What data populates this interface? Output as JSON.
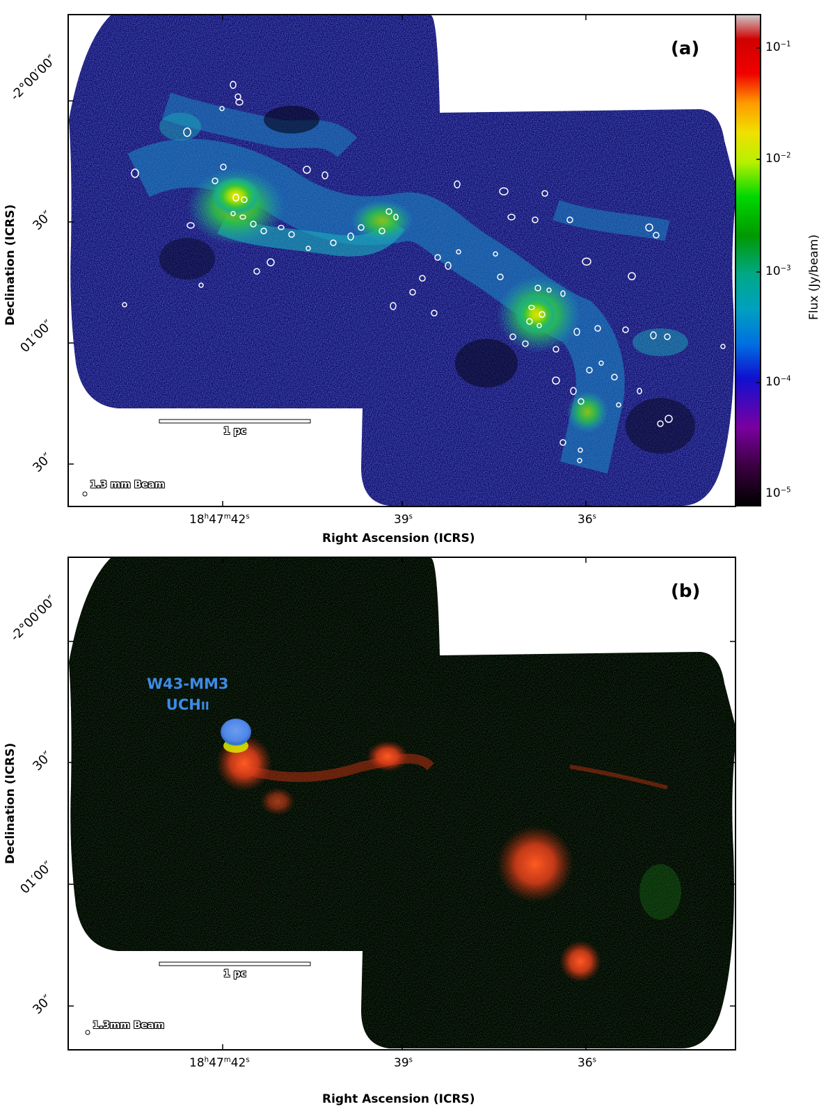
{
  "figure": {
    "panels": [
      {
        "label": "(a)",
        "y_ticks": [
          "-2°00′00″",
          "30″",
          "01′00″",
          "30″"
        ],
        "x_ticks": [
          {
            "h": "18",
            "h_sup": "h",
            "m": "47",
            "m_sup": "m",
            "s": "42",
            "s_sup": "s"
          },
          {
            "s": "39",
            "s_sup": "s"
          },
          {
            "s": "36",
            "s_sup": "s"
          }
        ],
        "xlabel": "Right Ascension (ICRS)",
        "ylabel": "Declination (ICRS)",
        "scalebar": "1 pc",
        "beam": "1.3 mm Beam",
        "colorbar": {
          "title": "Flux (Jy/beam)",
          "ticks": [
            "10",
            "10",
            "10",
            "10",
            "10"
          ],
          "exponents": [
            "−1",
            "−2",
            "−3",
            "−4",
            "−5"
          ],
          "scale": "log",
          "range": [
            8e-06,
            0.2
          ]
        },
        "image": {
          "colormap": "nipy_spectral",
          "description_icons": [
            "ellipse-core-markers"
          ]
        }
      },
      {
        "label": "(b)",
        "y_ticks": [
          "-2°00′00″",
          "30″",
          "01′00″",
          "30″"
        ],
        "x_ticks": [
          {
            "h": "18",
            "h_sup": "h",
            "m": "47",
            "m_sup": "m",
            "s": "42",
            "s_sup": "s"
          },
          {
            "s": "39",
            "s_sup": "s"
          },
          {
            "s": "36",
            "s_sup": "s"
          }
        ],
        "xlabel": "Right Ascension (ICRS)",
        "ylabel": "Declination (ICRS)",
        "scalebar": "1 pc",
        "beam": "1.3mm Beam",
        "annotation": [
          "W43-MM3",
          "UCH",
          "II"
        ],
        "colors": {
          "red": "#ff4a1c",
          "green": "#1f9a22",
          "blue": "#4f86e6"
        }
      }
    ]
  }
}
